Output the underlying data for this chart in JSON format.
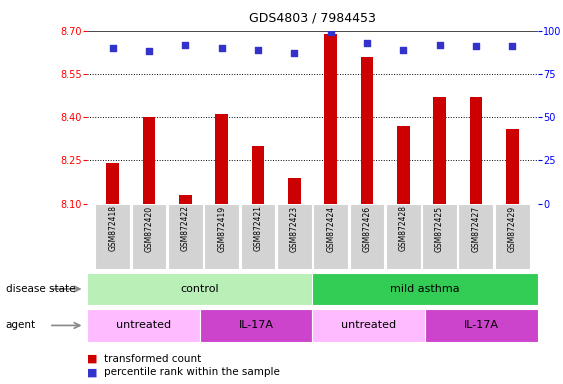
{
  "title": "GDS4803 / 7984453",
  "samples": [
    "GSM872418",
    "GSM872420",
    "GSM872422",
    "GSM872419",
    "GSM872421",
    "GSM872423",
    "GSM872424",
    "GSM872426",
    "GSM872428",
    "GSM872425",
    "GSM872427",
    "GSM872429"
  ],
  "red_values": [
    8.24,
    8.4,
    8.13,
    8.41,
    8.3,
    8.19,
    8.69,
    8.61,
    8.37,
    8.47,
    8.47,
    8.36
  ],
  "blue_values": [
    90,
    88,
    92,
    90,
    89,
    87,
    99,
    93,
    89,
    92,
    91,
    91
  ],
  "ylim_left": [
    8.1,
    8.7
  ],
  "ylim_right": [
    0,
    100
  ],
  "yticks_left": [
    8.1,
    8.25,
    8.4,
    8.55,
    8.7
  ],
  "yticks_right": [
    0,
    25,
    50,
    75,
    100
  ],
  "bar_color": "#cc0000",
  "dot_color": "#3333cc",
  "background_color": "#ffffff",
  "disease_state_groups": [
    {
      "label": "control",
      "start": 0,
      "end": 6,
      "color": "#b8f0b8"
    },
    {
      "label": "mild asthma",
      "start": 6,
      "end": 12,
      "color": "#33cc55"
    }
  ],
  "agent_groups": [
    {
      "label": "untreated",
      "start": 0,
      "end": 3,
      "color": "#ffbbff"
    },
    {
      "label": "IL-17A",
      "start": 3,
      "end": 6,
      "color": "#cc44cc"
    },
    {
      "label": "untreated",
      "start": 6,
      "end": 9,
      "color": "#ffbbff"
    },
    {
      "label": "IL-17A",
      "start": 9,
      "end": 12,
      "color": "#cc44cc"
    }
  ],
  "legend_red": "transformed count",
  "legend_blue": "percentile rank within the sample",
  "label_disease_state": "disease state",
  "label_agent": "agent"
}
